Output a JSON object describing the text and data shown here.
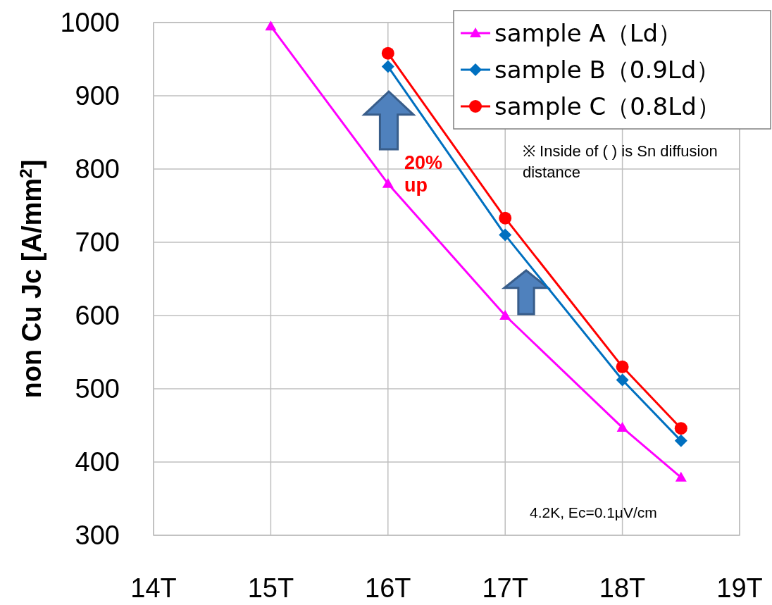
{
  "chart_data": {
    "type": "line",
    "ylabel": "non Cu  Jc [A/mm$^{2}$]",
    "xlim": [
      14,
      19
    ],
    "xticks": [
      {
        "value": 14,
        "label": "14T"
      },
      {
        "value": 15,
        "label": "15T"
      },
      {
        "value": 16,
        "label": "16T"
      },
      {
        "value": 17,
        "label": "17T"
      },
      {
        "value": 18,
        "label": "18T"
      },
      {
        "value": 19,
        "label": "19T"
      }
    ],
    "ylim": [
      300,
      1000
    ],
    "yticks": [
      300,
      400,
      500,
      600,
      700,
      800,
      900,
      1000
    ],
    "grid": true,
    "legend": "top right",
    "line_style": "solid",
    "series": [
      {
        "name": "sample A（Ld）",
        "color": "#ff00ff",
        "marker": "triangle",
        "x": [
          15,
          16,
          17,
          18,
          18.5
        ],
        "values": [
          995,
          780,
          600,
          447,
          379
        ]
      },
      {
        "name": "sample B（0.9Ld）",
        "color": "#0070c0",
        "marker": "diamond",
        "x": [
          16,
          17,
          18,
          18.5
        ],
        "values": [
          940,
          710,
          512,
          429
        ]
      },
      {
        "name": "sample C（0.8Ld）",
        "color": "#ff0000",
        "marker": "circle",
        "x": [
          16,
          17,
          18,
          18.5
        ],
        "values": [
          958,
          733,
          530,
          446
        ]
      }
    ],
    "annotations": [
      "20% up",
      "※ Inside of (  ) is Sn diffusion distance",
      "4.2K, Ec=0.1μV/cm"
    ]
  }
}
